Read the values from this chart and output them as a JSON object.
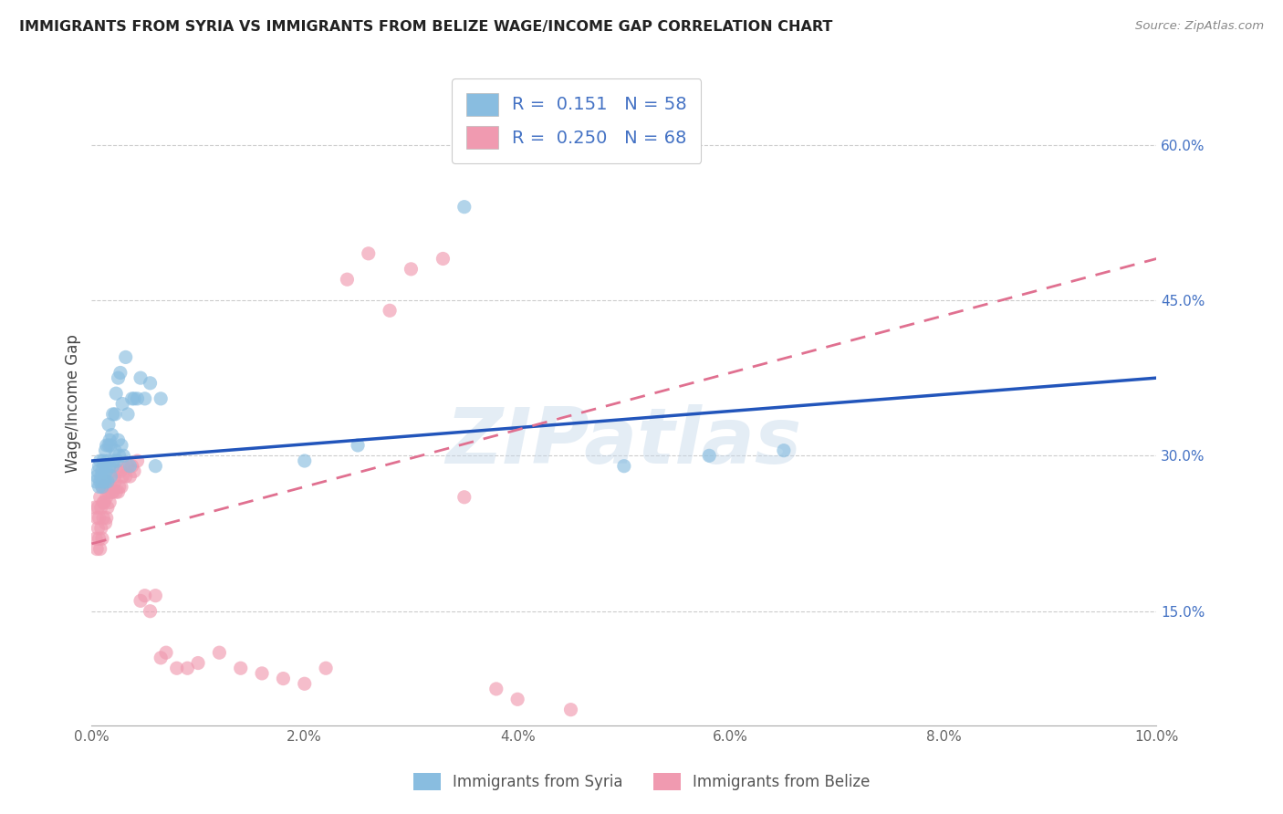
{
  "title": "IMMIGRANTS FROM SYRIA VS IMMIGRANTS FROM BELIZE WAGE/INCOME GAP CORRELATION CHART",
  "source": "Source: ZipAtlas.com",
  "ylabel": "Wage/Income Gap",
  "watermark": "ZIPatlas",
  "legend_syria_R": 0.151,
  "legend_syria_N": 58,
  "legend_belize_R": 0.25,
  "legend_belize_N": 68,
  "syria_color": "#89bde0",
  "belize_color": "#f09ab0",
  "syria_line_color": "#2255bb",
  "belize_line_color": "#e07090",
  "ytick_labels": [
    "15.0%",
    "30.0%",
    "45.0%",
    "60.0%"
  ],
  "ytick_values": [
    0.15,
    0.3,
    0.45,
    0.6
  ],
  "xmin": 0.0,
  "xmax": 0.1,
  "ymin": 0.04,
  "ymax": 0.66,
  "syria_x": [
    0.0004,
    0.0005,
    0.0006,
    0.0007,
    0.0007,
    0.0008,
    0.0008,
    0.0009,
    0.001,
    0.001,
    0.0011,
    0.0011,
    0.0012,
    0.0012,
    0.0013,
    0.0013,
    0.0014,
    0.0014,
    0.0015,
    0.0015,
    0.0016,
    0.0016,
    0.0017,
    0.0017,
    0.0018,
    0.0018,
    0.0019,
    0.002,
    0.002,
    0.0021,
    0.0022,
    0.0022,
    0.0023,
    0.0024,
    0.0025,
    0.0025,
    0.0026,
    0.0027,
    0.0028,
    0.0029,
    0.003,
    0.0032,
    0.0034,
    0.0036,
    0.0038,
    0.004,
    0.0043,
    0.0046,
    0.005,
    0.0055,
    0.006,
    0.0065,
    0.02,
    0.025,
    0.035,
    0.05,
    0.058,
    0.065
  ],
  "syria_y": [
    0.275,
    0.28,
    0.285,
    0.27,
    0.29,
    0.275,
    0.295,
    0.28,
    0.27,
    0.285,
    0.275,
    0.295,
    0.28,
    0.29,
    0.275,
    0.305,
    0.285,
    0.31,
    0.275,
    0.295,
    0.31,
    0.33,
    0.29,
    0.315,
    0.28,
    0.31,
    0.32,
    0.29,
    0.34,
    0.295,
    0.34,
    0.305,
    0.36,
    0.295,
    0.315,
    0.375,
    0.3,
    0.38,
    0.31,
    0.35,
    0.3,
    0.395,
    0.34,
    0.29,
    0.355,
    0.355,
    0.355,
    0.375,
    0.355,
    0.37,
    0.29,
    0.355,
    0.295,
    0.31,
    0.54,
    0.29,
    0.3,
    0.305
  ],
  "belize_x": [
    0.0003,
    0.0004,
    0.0005,
    0.0005,
    0.0006,
    0.0006,
    0.0007,
    0.0007,
    0.0008,
    0.0008,
    0.0009,
    0.0009,
    0.001,
    0.001,
    0.0011,
    0.0011,
    0.0012,
    0.0012,
    0.0013,
    0.0014,
    0.0014,
    0.0015,
    0.0015,
    0.0016,
    0.0017,
    0.0018,
    0.0019,
    0.002,
    0.0021,
    0.0022,
    0.0023,
    0.0024,
    0.0025,
    0.0026,
    0.0027,
    0.0028,
    0.0029,
    0.003,
    0.0032,
    0.0034,
    0.0036,
    0.0038,
    0.004,
    0.0043,
    0.0046,
    0.005,
    0.0055,
    0.006,
    0.0065,
    0.007,
    0.008,
    0.009,
    0.01,
    0.012,
    0.014,
    0.016,
    0.018,
    0.02,
    0.022,
    0.024,
    0.026,
    0.028,
    0.03,
    0.033,
    0.035,
    0.038,
    0.04,
    0.045
  ],
  "belize_y": [
    0.25,
    0.22,
    0.24,
    0.21,
    0.23,
    0.25,
    0.22,
    0.24,
    0.21,
    0.26,
    0.23,
    0.25,
    0.22,
    0.27,
    0.24,
    0.255,
    0.255,
    0.27,
    0.235,
    0.26,
    0.24,
    0.25,
    0.275,
    0.265,
    0.255,
    0.27,
    0.265,
    0.265,
    0.28,
    0.275,
    0.265,
    0.285,
    0.265,
    0.27,
    0.285,
    0.27,
    0.28,
    0.29,
    0.28,
    0.29,
    0.28,
    0.29,
    0.285,
    0.295,
    0.16,
    0.165,
    0.15,
    0.165,
    0.105,
    0.11,
    0.095,
    0.095,
    0.1,
    0.11,
    0.095,
    0.09,
    0.085,
    0.08,
    0.095,
    0.47,
    0.495,
    0.44,
    0.48,
    0.49,
    0.26,
    0.075,
    0.065,
    0.055
  ]
}
